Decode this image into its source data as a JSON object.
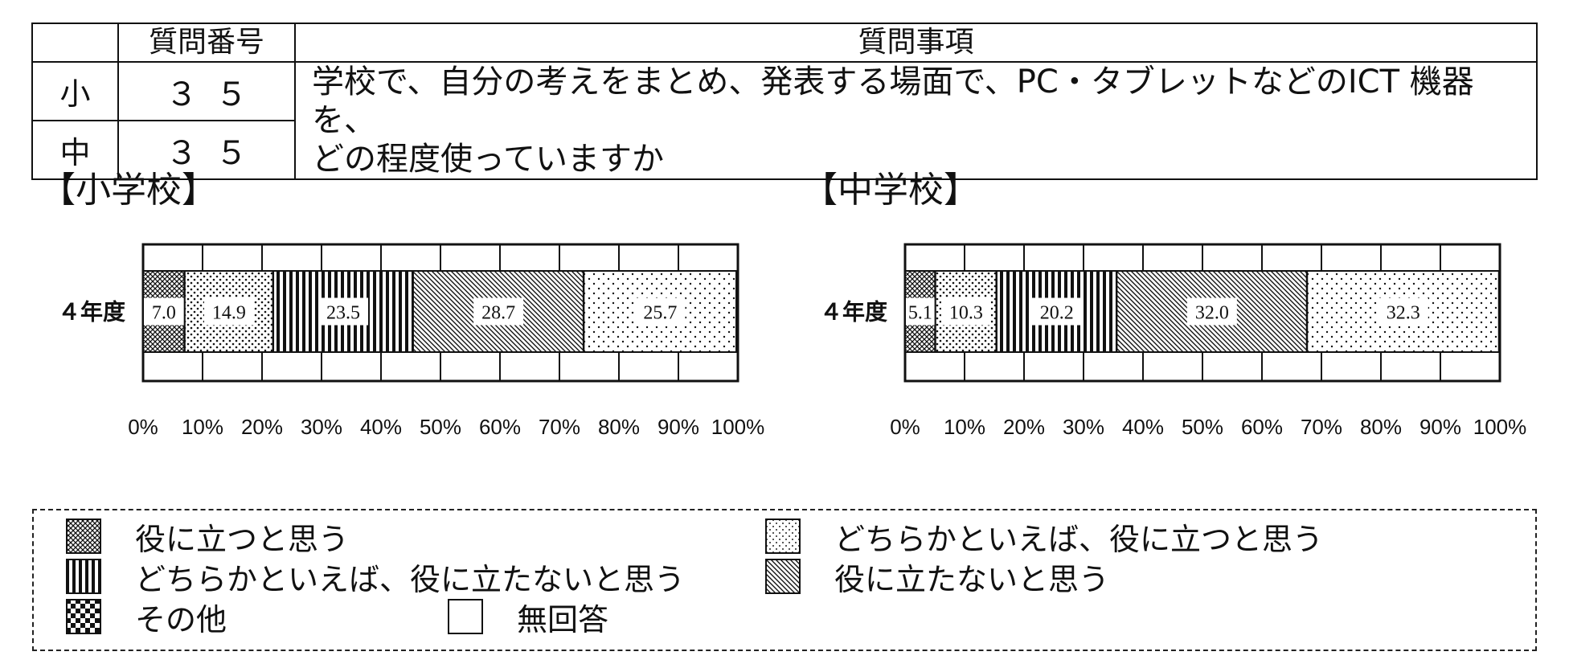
{
  "table": {
    "col_grade": "",
    "col_number": "質問番号",
    "col_question": "質問事項",
    "rows": [
      {
        "grade": "小",
        "number": "３５"
      },
      {
        "grade": "中",
        "number": "３５"
      }
    ],
    "question_line1": "学校で、自分の考えをまとめ、発表する場面で、PC・タブレットなどのICT 機器を、",
    "question_line2": "どの程度使っていますか"
  },
  "sections": {
    "elementary": "【小学校】",
    "junior": "【中学校】"
  },
  "colors": {
    "ink": "#111111",
    "background": "#ffffff"
  },
  "chart_data": [
    {
      "type": "bar",
      "orientation": "horizontal",
      "stacked": true,
      "title": "【小学校】",
      "categories": [
        "４年度"
      ],
      "xlabel": "",
      "ylabel": "",
      "xlim": [
        0,
        100
      ],
      "x_ticks": [
        "0%",
        "10%",
        "20%",
        "30%",
        "40%",
        "50%",
        "60%",
        "70%",
        "80%",
        "90%",
        "100%"
      ],
      "grid": true,
      "series": [
        {
          "name": "役に立つと思う",
          "values": [
            7.0
          ],
          "label": "7.0",
          "pattern": "crosshatch-fine"
        },
        {
          "name": "どちらかといえば、役に立つと思う",
          "values": [
            14.9
          ],
          "label": "14.9",
          "pattern": "dots-dense"
        },
        {
          "name": "どちらかといえば、役に立たないと思う",
          "values": [
            23.5
          ],
          "label": "23.5",
          "pattern": "vertical-stripes"
        },
        {
          "name": "役に立たないと思う",
          "values": [
            28.7
          ],
          "label": "28.7",
          "pattern": "diagonal-lines"
        },
        {
          "name": "",
          "values": [
            25.7
          ],
          "label": "25.7",
          "pattern": "dots-sparse"
        }
      ]
    },
    {
      "type": "bar",
      "orientation": "horizontal",
      "stacked": true,
      "title": "【中学校】",
      "categories": [
        "４年度"
      ],
      "xlabel": "",
      "ylabel": "",
      "xlim": [
        0,
        100
      ],
      "x_ticks": [
        "0%",
        "10%",
        "20%",
        "30%",
        "40%",
        "50%",
        "60%",
        "70%",
        "80%",
        "90%",
        "100%"
      ],
      "grid": true,
      "series": [
        {
          "name": "役に立つと思う",
          "values": [
            5.1
          ],
          "label": "5.1",
          "pattern": "crosshatch-fine"
        },
        {
          "name": "どちらかといえば、役に立つと思う",
          "values": [
            10.3
          ],
          "label": "10.3",
          "pattern": "dots-dense"
        },
        {
          "name": "どちらかといえば、役に立たないと思う",
          "values": [
            20.2
          ],
          "label": "20.2",
          "pattern": "vertical-stripes"
        },
        {
          "name": "役に立たないと思う",
          "values": [
            32.0
          ],
          "label": "32.0",
          "pattern": "diagonal-lines"
        },
        {
          "name": "",
          "values": [
            32.3
          ],
          "label": "32.3",
          "pattern": "dots-sparse"
        }
      ]
    }
  ],
  "legend": [
    {
      "label": "役に立つと思う",
      "pattern": "crosshatch-fine"
    },
    {
      "label": "どちらかといえば、役に立つと思う",
      "pattern": "dots-light"
    },
    {
      "label": "どちらかといえば、役に立たないと思う",
      "pattern": "vertical-stripes"
    },
    {
      "label": "役に立たないと思う",
      "pattern": "diagonal-lines"
    },
    {
      "label": "その他",
      "pattern": "checker"
    },
    {
      "label": "無回答",
      "pattern": "none"
    }
  ]
}
